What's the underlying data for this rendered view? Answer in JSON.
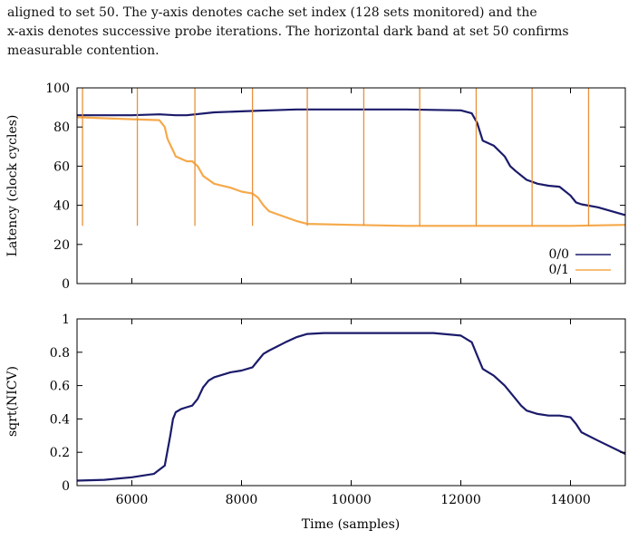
{
  "caption": {
    "line1": "aligned to set 50. The y-axis denotes cache set index (128 sets monitored) and the",
    "line2": "x-axis denotes successive probe iterations. The horizontal dark band at set 50 confirms",
    "line3": "measurable contention."
  },
  "colors": {
    "series_00": "#1b1b6b",
    "series_01": "#f6a94a",
    "spikes": "#e8913a",
    "axis": "#000000"
  },
  "chart_data": [
    {
      "type": "line",
      "title": "",
      "xlabel": "",
      "ylabel": "Latency (clock cycles)",
      "xlim": [
        5000,
        15000
      ],
      "ylim": [
        0,
        100
      ],
      "yticks": [
        "0",
        "20",
        "40",
        "60",
        "80",
        "100"
      ],
      "legend": "bottom-right",
      "series": [
        {
          "name": "0/0",
          "x": [
            5000,
            6000,
            6500,
            6800,
            7000,
            7500,
            8000,
            8500,
            9000,
            9500,
            10000,
            11000,
            12000,
            12200,
            12300,
            12400,
            12600,
            12800,
            12900,
            13000,
            13200,
            13400,
            13600,
            13800,
            14000,
            14100,
            14200,
            14500,
            15000
          ],
          "y": [
            86,
            86,
            86.5,
            86,
            86,
            87.5,
            88,
            88.5,
            89,
            89,
            89,
            89,
            88.5,
            87,
            82,
            73,
            70.5,
            65,
            60,
            57.5,
            53,
            51,
            50,
            49.5,
            45,
            41.5,
            40.5,
            39,
            35
          ]
        },
        {
          "name": "0/1",
          "x": [
            5000,
            6000,
            6500,
            6600,
            6650,
            6750,
            6800,
            7000,
            7100,
            7200,
            7300,
            7500,
            7800,
            8000,
            8100,
            8200,
            8300,
            8400,
            8500,
            8800,
            9000,
            9200,
            10000,
            11000,
            12000,
            13000,
            14000,
            15000
          ],
          "y": [
            85,
            84,
            83.5,
            80,
            74,
            68,
            65,
            62.5,
            62.5,
            60,
            55,
            51,
            49,
            47,
            46.5,
            46,
            44,
            40,
            37,
            34,
            32,
            30.5,
            30,
            29.5,
            29.5,
            29.5,
            29.5,
            30
          ]
        },
        {
          "name": "",
          "type": "spikes",
          "x": [
            5100,
            6100,
            7150,
            8200,
            9200,
            10230,
            11250,
            12280,
            13300,
            14330
          ],
          "ybase": 29.5,
          "ytop": 100
        }
      ]
    },
    {
      "type": "line",
      "title": "",
      "xlabel": "Time (samples)",
      "ylabel": "sqrt(NICV)",
      "xlim": [
        5000,
        15000
      ],
      "ylim": [
        0,
        1
      ],
      "xticks": [
        "6000",
        "8000",
        "10000",
        "12000",
        "14000"
      ],
      "yticks": [
        "0",
        "0.2",
        "0.4",
        "0.6",
        "0.8",
        "1"
      ],
      "series": [
        {
          "name": "",
          "x": [
            5000,
            5500,
            6000,
            6400,
            6600,
            6700,
            6750,
            6800,
            6900,
            7000,
            7100,
            7200,
            7300,
            7400,
            7500,
            7800,
            8000,
            8200,
            8300,
            8400,
            8500,
            8800,
            9000,
            9200,
            9500,
            10000,
            11000,
            11500,
            12000,
            12200,
            12300,
            12400,
            12600,
            12800,
            13000,
            13100,
            13200,
            13400,
            13600,
            13800,
            14000,
            14100,
            14200,
            14500,
            15000
          ],
          "y": [
            0.03,
            0.035,
            0.05,
            0.07,
            0.12,
            0.3,
            0.4,
            0.44,
            0.46,
            0.47,
            0.48,
            0.52,
            0.59,
            0.63,
            0.65,
            0.68,
            0.69,
            0.71,
            0.75,
            0.79,
            0.81,
            0.86,
            0.89,
            0.91,
            0.915,
            0.915,
            0.915,
            0.915,
            0.9,
            0.86,
            0.78,
            0.7,
            0.66,
            0.6,
            0.52,
            0.48,
            0.45,
            0.43,
            0.42,
            0.42,
            0.41,
            0.37,
            0.32,
            0.27,
            0.19
          ]
        }
      ]
    }
  ]
}
